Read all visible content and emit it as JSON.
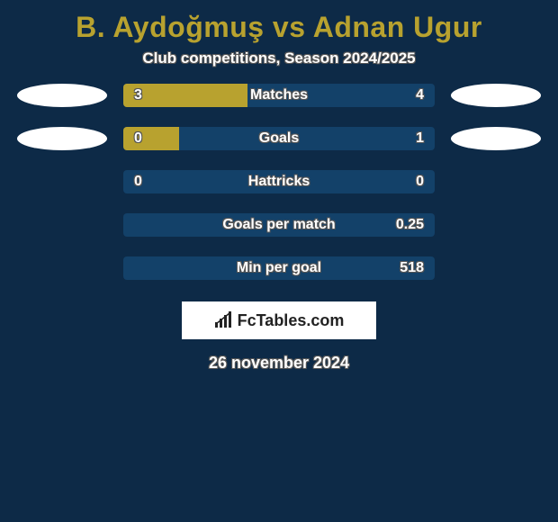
{
  "background_color": "#0d2a47",
  "title": "B. Aydoğmuş vs Adnan Ugur",
  "title_color": "#b8a22f",
  "subtitle": "Club competitions, Season 2024/2025",
  "subtitle_color": "#ffffff",
  "bar": {
    "bg_color": "#134169",
    "fill_color": "#b8a22f",
    "text_color": "#ffffff"
  },
  "ellipse_color": "#ffffff",
  "rows": [
    {
      "label": "Matches",
      "left": "3",
      "right": "4",
      "fill_pct": 40,
      "show_ellipses": true
    },
    {
      "label": "Goals",
      "left": "0",
      "right": "1",
      "fill_pct": 18,
      "show_ellipses": true
    },
    {
      "label": "Hattricks",
      "left": "0",
      "right": "0",
      "fill_pct": 0,
      "show_ellipses": false
    },
    {
      "label": "Goals per match",
      "left": "",
      "right": "0.25",
      "fill_pct": 0,
      "show_ellipses": false
    },
    {
      "label": "Min per goal",
      "left": "",
      "right": "518",
      "fill_pct": 0,
      "show_ellipses": false
    }
  ],
  "logo": {
    "bg_color": "#ffffff",
    "text": "FcTables.com",
    "text_color": "#222222"
  },
  "date": "26 november 2024",
  "date_color": "#ffffff"
}
